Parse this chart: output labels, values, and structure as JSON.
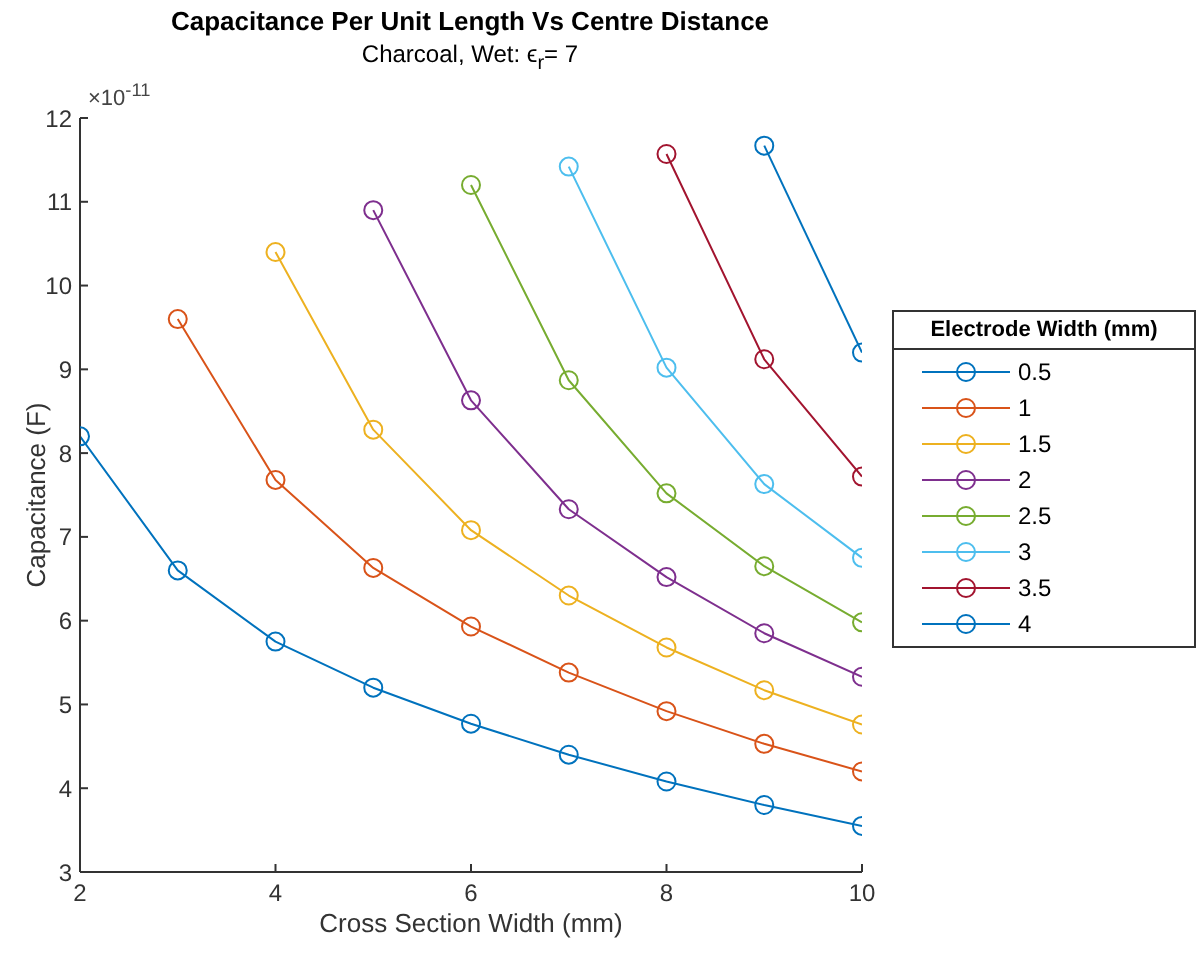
{
  "chart_data": {
    "type": "line",
    "title": "Capacitance Per Unit Length Vs Centre Distance",
    "subtitle": "Charcoal, Wet: ϵ$_{r}$= 7",
    "xlabel": "Cross Section Width (mm)",
    "ylabel": "Capacitance (F)",
    "legend_title": "Electrode Width (mm)",
    "annotations": [
      "×10$^{-11}$"
    ],
    "xlim": [
      2,
      10
    ],
    "xticks": [
      2,
      4,
      6,
      8,
      10
    ],
    "ylim": [
      3,
      12
    ],
    "yticks": [
      3,
      4,
      5,
      6,
      7,
      8,
      9,
      10,
      11,
      12
    ],
    "grid": false,
    "legend": "right",
    "marker": "circle",
    "line_style": "solid",
    "series": [
      {
        "name": "0.5",
        "color": "#0072bd",
        "x": [
          2,
          3,
          4,
          5,
          6,
          7,
          8,
          9,
          10
        ],
        "values": [
          8.2,
          6.6,
          5.75,
          5.2,
          4.77,
          4.4,
          4.08,
          3.8,
          3.55
        ]
      },
      {
        "name": "1",
        "color": "#d95319",
        "x": [
          3,
          4,
          5,
          6,
          7,
          8,
          9,
          10
        ],
        "values": [
          9.6,
          7.68,
          6.63,
          5.93,
          5.38,
          4.92,
          4.53,
          4.2
        ]
      },
      {
        "name": "1.5",
        "color": "#edb120",
        "x": [
          4,
          5,
          6,
          7,
          8,
          9,
          10
        ],
        "values": [
          10.4,
          8.28,
          7.08,
          6.3,
          5.68,
          5.17,
          4.76
        ]
      },
      {
        "name": "2",
        "color": "#7e2f8e",
        "x": [
          5,
          6,
          7,
          8,
          9,
          10
        ],
        "values": [
          10.9,
          8.63,
          7.33,
          6.52,
          5.85,
          5.33
        ]
      },
      {
        "name": "2.5",
        "color": "#77ac30",
        "x": [
          6,
          7,
          8,
          9,
          10
        ],
        "values": [
          11.2,
          8.87,
          7.52,
          6.65,
          5.98
        ]
      },
      {
        "name": "3",
        "color": "#4dbeee",
        "x": [
          7,
          8,
          9,
          10
        ],
        "values": [
          11.42,
          9.02,
          7.63,
          6.75
        ]
      },
      {
        "name": "3.5",
        "color": "#a2142f",
        "x": [
          8,
          9,
          10
        ],
        "values": [
          11.57,
          9.12,
          7.72
        ]
      },
      {
        "name": "4",
        "color": "#0072bd",
        "x": [
          9,
          10
        ],
        "values": [
          11.67,
          9.2
        ]
      }
    ]
  }
}
